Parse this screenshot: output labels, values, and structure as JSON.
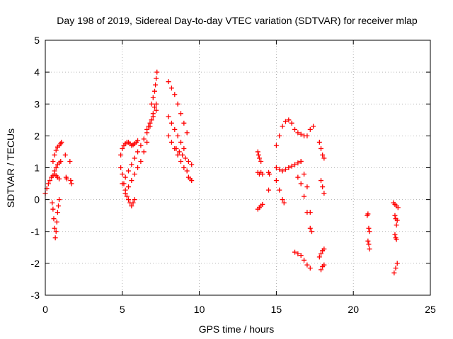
{
  "chart_data": {
    "type": "scatter",
    "title": "Day 198 of 2019, Sidereal Day-to-day VTEC variation (SDTVAR) for receiver mlap",
    "xlabel": "GPS time / hours",
    "ylabel": "SDTVAR / TECUs",
    "xlim": [
      0,
      25
    ],
    "ylim": [
      -3,
      5
    ],
    "xticks": [
      0,
      5,
      10,
      15,
      20,
      25
    ],
    "yticks": [
      -3,
      -2,
      -1,
      0,
      1,
      2,
      3,
      4,
      5
    ],
    "grid": true,
    "grid_style": "dotted",
    "marker": "+",
    "series": [
      {
        "color": "#ff0000",
        "segments": [
          {
            "x": [
              0.0,
              0.1,
              0.2,
              0.3,
              0.4,
              0.5,
              0.6,
              0.7,
              0.8,
              0.9
            ],
            "y": [
              0.2,
              0.35,
              0.5,
              0.6,
              0.7,
              0.75,
              0.8,
              0.75,
              0.7,
              0.65
            ]
          },
          {
            "x": [
              0.45,
              0.5,
              0.55,
              0.6,
              0.65,
              0.7,
              0.75,
              0.8,
              0.85,
              0.9
            ],
            "y": [
              -0.1,
              -0.3,
              -0.6,
              -0.9,
              -1.2,
              -1.0,
              -0.7,
              -0.4,
              -0.2,
              0.0
            ]
          },
          {
            "x": [
              0.5,
              0.6,
              0.7,
              0.8,
              0.9,
              1.0,
              1.05
            ],
            "y": [
              1.2,
              1.4,
              1.55,
              1.65,
              1.7,
              1.75,
              1.8
            ]
          },
          {
            "x": [
              0.6,
              0.7,
              0.8,
              0.9,
              1.0
            ],
            "y": [
              0.9,
              1.0,
              1.1,
              1.15,
              1.2
            ]
          },
          {
            "x": [
              1.3,
              1.35,
              1.4,
              1.6,
              1.65,
              1.7
            ],
            "y": [
              1.4,
              0.7,
              0.65,
              1.2,
              0.6,
              0.5
            ]
          },
          {
            "x": [
              4.9,
              5.0,
              5.1,
              5.2,
              5.3,
              5.4,
              5.5,
              5.6,
              5.7,
              5.8,
              5.9,
              6.0
            ],
            "y": [
              1.4,
              1.6,
              1.7,
              1.75,
              1.8,
              1.8,
              1.75,
              1.7,
              1.72,
              1.75,
              1.8,
              1.85
            ]
          },
          {
            "x": [
              4.9,
              5.0,
              5.1,
              5.2,
              5.3,
              5.4,
              5.5,
              5.6,
              5.7,
              5.8
            ],
            "y": [
              1.0,
              0.8,
              0.5,
              0.3,
              0.1,
              0.0,
              -0.1,
              -0.2,
              -0.1,
              0.0
            ]
          },
          {
            "x": [
              5.0,
              5.2,
              5.4,
              5.6,
              5.8,
              6.0,
              6.2,
              6.4,
              6.6,
              6.8,
              7.0,
              7.2
            ],
            "y": [
              0.5,
              0.7,
              0.9,
              1.1,
              1.3,
              1.5,
              1.7,
              1.9,
              2.1,
              2.3,
              2.6,
              2.8
            ]
          },
          {
            "x": [
              5.2,
              5.4,
              5.6,
              5.8,
              6.0,
              6.2,
              6.4,
              6.6
            ],
            "y": [
              0.2,
              0.4,
              0.6,
              0.8,
              1.0,
              1.2,
              1.5,
              1.8
            ]
          },
          {
            "x": [
              6.6,
              6.7,
              6.8,
              6.9,
              7.0,
              7.1,
              7.2
            ],
            "y": [
              2.2,
              2.3,
              2.4,
              2.5,
              2.7,
              2.9,
              3.0
            ]
          },
          {
            "x": [
              6.9,
              7.0,
              7.1,
              7.15,
              7.2,
              7.25
            ],
            "y": [
              3.0,
              3.2,
              3.4,
              3.6,
              3.8,
              4.0
            ]
          },
          {
            "x": [
              8.0,
              8.2,
              8.4,
              8.6,
              8.8,
              9.0,
              9.2
            ],
            "y": [
              3.7,
              3.5,
              3.3,
              3.0,
              2.7,
              2.4,
              2.1
            ]
          },
          {
            "x": [
              8.0,
              8.2,
              8.4,
              8.6,
              8.8,
              9.0
            ],
            "y": [
              2.6,
              2.4,
              2.2,
              2.0,
              1.8,
              1.6
            ]
          },
          {
            "x": [
              8.0,
              8.2,
              8.4,
              8.6,
              8.8,
              9.0,
              9.2
            ],
            "y": [
              2.0,
              1.8,
              1.6,
              1.4,
              1.2,
              1.0,
              0.9
            ]
          },
          {
            "x": [
              8.5,
              8.7,
              8.9,
              9.1,
              9.3,
              9.5
            ],
            "y": [
              1.6,
              1.5,
              1.4,
              1.3,
              1.2,
              1.1
            ]
          },
          {
            "x": [
              9.3,
              9.4,
              9.5
            ],
            "y": [
              0.7,
              0.65,
              0.6
            ]
          },
          {
            "x": [
              13.8,
              13.85,
              13.9,
              14.0
            ],
            "y": [
              1.5,
              1.4,
              1.3,
              1.2
            ]
          },
          {
            "x": [
              13.8,
              13.9,
              14.0,
              14.1
            ],
            "y": [
              0.85,
              0.8,
              0.85,
              0.8
            ]
          },
          {
            "x": [
              13.8,
              13.9,
              14.0,
              14.1
            ],
            "y": [
              -0.3,
              -0.25,
              -0.2,
              -0.15
            ]
          },
          {
            "x": [
              14.5,
              14.5,
              14.55
            ],
            "y": [
              0.85,
              0.3,
              0.8
            ]
          },
          {
            "x": [
              15.0,
              15.2,
              15.4,
              15.6,
              15.8,
              16.0,
              16.2,
              16.4,
              16.6,
              16.8,
              17.0,
              17.2,
              17.4
            ],
            "y": [
              1.7,
              2.0,
              2.3,
              2.45,
              2.5,
              2.4,
              2.2,
              2.1,
              2.05,
              2.0,
              2.0,
              2.2,
              2.3
            ]
          },
          {
            "x": [
              15.0,
              15.2,
              15.4,
              15.6,
              15.8,
              16.0,
              16.2,
              16.4,
              16.6
            ],
            "y": [
              1.0,
              0.95,
              0.9,
              0.95,
              1.0,
              1.05,
              1.1,
              1.15,
              1.2
            ]
          },
          {
            "x": [
              15.0,
              15.2,
              15.4,
              15.5
            ],
            "y": [
              0.6,
              0.3,
              0.0,
              -0.1
            ]
          },
          {
            "x": [
              16.6,
              16.8,
              17.0,
              17.2,
              17.3
            ],
            "y": [
              1.2,
              0.8,
              0.4,
              -0.4,
              -1.0
            ]
          },
          {
            "x": [
              16.4,
              16.6,
              16.8,
              17.0,
              17.2
            ],
            "y": [
              0.7,
              0.5,
              0.1,
              -0.4,
              -0.9
            ]
          },
          {
            "x": [
              16.2,
              16.4,
              16.6,
              16.8,
              17.0,
              17.2
            ],
            "y": [
              -1.65,
              -1.7,
              -1.75,
              -1.9,
              -2.05,
              -2.15
            ]
          },
          {
            "x": [
              17.8,
              17.9,
              18.0,
              18.1
            ],
            "y": [
              1.8,
              1.6,
              1.4,
              1.3
            ]
          },
          {
            "x": [
              17.9,
              18.0,
              18.1
            ],
            "y": [
              0.6,
              0.4,
              0.2
            ]
          },
          {
            "x": [
              17.8,
              17.9,
              18.0,
              18.1
            ],
            "y": [
              -1.8,
              -1.7,
              -1.6,
              -1.55
            ]
          },
          {
            "x": [
              17.9,
              18.0,
              18.1
            ],
            "y": [
              -2.2,
              -2.1,
              -2.05
            ]
          },
          {
            "x": [
              20.9,
              20.95,
              21.0,
              21.05
            ],
            "y": [
              -0.5,
              -0.45,
              -0.9,
              -1.0
            ]
          },
          {
            "x": [
              20.95,
              21.0,
              21.05
            ],
            "y": [
              -1.3,
              -1.4,
              -1.55
            ]
          },
          {
            "x": [
              22.6,
              22.7,
              22.8,
              22.9
            ],
            "y": [
              -0.1,
              -0.15,
              -0.2,
              -0.25
            ]
          },
          {
            "x": [
              22.7,
              22.75,
              22.8,
              22.85
            ],
            "y": [
              -0.5,
              -0.6,
              -0.8,
              -0.65
            ]
          },
          {
            "x": [
              22.7,
              22.75,
              22.8
            ],
            "y": [
              -1.1,
              -1.2,
              -1.25
            ]
          },
          {
            "x": [
              22.65,
              22.75,
              22.85
            ],
            "y": [
              -2.3,
              -2.15,
              -2.0
            ]
          }
        ]
      }
    ]
  }
}
